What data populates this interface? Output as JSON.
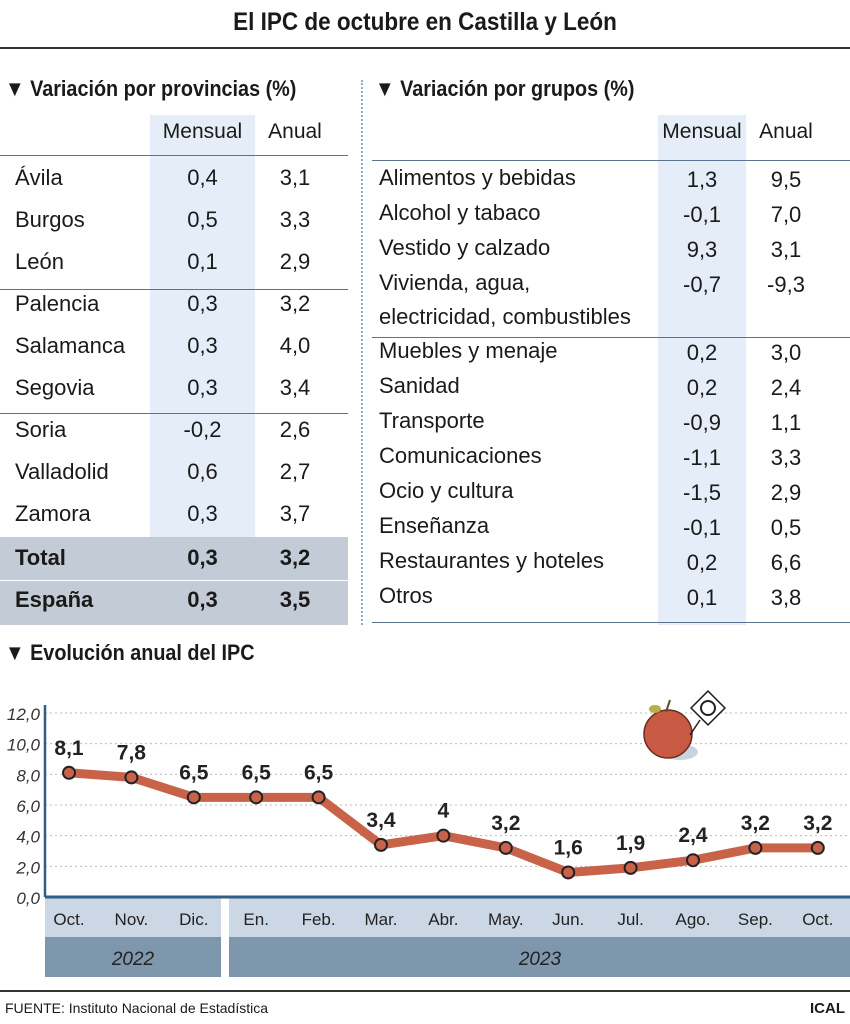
{
  "title": "El IPC de octubre en Castilla y León",
  "provincias": {
    "heading": "Variación por provincias (%)",
    "columns": [
      "Mensual",
      "Anual"
    ],
    "rows": [
      [
        "Ávila",
        "0,4",
        "3,1"
      ],
      [
        "Burgos",
        "0,5",
        "3,3"
      ],
      [
        "León",
        "0,1",
        "2,9"
      ],
      [
        "Palencia",
        "0,3",
        "3,2"
      ],
      [
        "Salamanca",
        "0,3",
        "4,0"
      ],
      [
        "Segovia",
        "0,3",
        "3,4"
      ],
      [
        "Soria",
        "-0,2",
        "2,6"
      ],
      [
        "Valladolid",
        "0,6",
        "2,7"
      ],
      [
        "Zamora",
        "0,3",
        "3,7"
      ],
      [
        "Total",
        "0,3",
        "3,2"
      ],
      [
        "España",
        "0,3",
        "3,5"
      ]
    ]
  },
  "grupos": {
    "heading": "Variación por grupos (%)",
    "columns": [
      "Mensual",
      "Anual"
    ],
    "rows": [
      [
        "Alimentos y bebidas",
        "1,3",
        "9,5"
      ],
      [
        "Alcohol y tabaco",
        "-0,1",
        "7,0"
      ],
      [
        "Vestido y calzado",
        "9,3",
        "3,1"
      ],
      [
        "Vivienda, agua,\nelectricidad, combustibles",
        "-0,7",
        "-9,3"
      ],
      [
        "Muebles y menaje",
        "0,2",
        "3,0"
      ],
      [
        "Sanidad",
        "0,2",
        "2,4"
      ],
      [
        "Transporte",
        "-0,9",
        "1,1"
      ],
      [
        "Comunicaciones",
        "-1,1",
        "3,3"
      ],
      [
        "Ocio y cultura",
        "-1,5",
        "2,9"
      ],
      [
        "Enseñanza",
        "-0,1",
        "0,5"
      ],
      [
        "Restaurantes y hoteles",
        "0,2",
        "6,6"
      ],
      [
        "Otros",
        "0,1",
        "3,8"
      ]
    ]
  },
  "chart_data": {
    "type": "line",
    "title": "Evolución anual del IPC",
    "categories": [
      "Oct.",
      "Nov.",
      "Dic.",
      "En.",
      "Feb.",
      "Mar.",
      "Abr.",
      "May.",
      "Jun.",
      "Jul.",
      "Ago.",
      "Sep.",
      "Oct."
    ],
    "years": [
      {
        "label": "2022",
        "span": 3
      },
      {
        "label": "2023",
        "span": 10
      }
    ],
    "values": [
      8.1,
      7.8,
      6.5,
      6.5,
      6.5,
      3.4,
      4,
      3.2,
      1.6,
      1.9,
      2.4,
      3.2,
      3.2
    ],
    "data_labels": [
      "8,1",
      "7,8",
      "6,5",
      "6,5",
      "6,5",
      "3,4",
      "4",
      "3,2",
      "1,6",
      "1,9",
      "2,4",
      "3,2",
      "3,2"
    ],
    "yticks": [
      "0,0",
      "2,0",
      "4,0",
      "6,0",
      "8,0",
      "10,0",
      "12,0"
    ],
    "ylim": [
      0,
      12
    ],
    "grid": true,
    "line_color": "#c8634a"
  },
  "footer": {
    "source": "FUENTE: Instituto Nacional de Estadística",
    "brand": "ICAL"
  }
}
